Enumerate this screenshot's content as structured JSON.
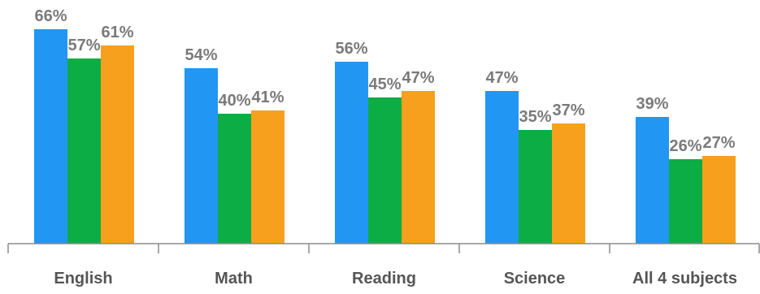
{
  "chart_data": {
    "type": "bar",
    "title": "",
    "xlabel": "",
    "ylabel": "",
    "ylim": [
      0,
      70
    ],
    "grid": false,
    "legend": "none",
    "categories": [
      "English",
      "Math",
      "Reading",
      "Science",
      "All  4 subjects"
    ],
    "series": [
      {
        "values": [
          66,
          54,
          56,
          47,
          39
        ],
        "color": "#2196F3"
      },
      {
        "values": [
          57,
          40,
          45,
          35,
          26
        ],
        "color": "#0DAD45"
      },
      {
        "values": [
          61,
          41,
          47,
          37,
          27
        ],
        "color": "#F6A01E"
      }
    ],
    "value_suffix": "%",
    "axis_color": "#8c8c8c"
  }
}
